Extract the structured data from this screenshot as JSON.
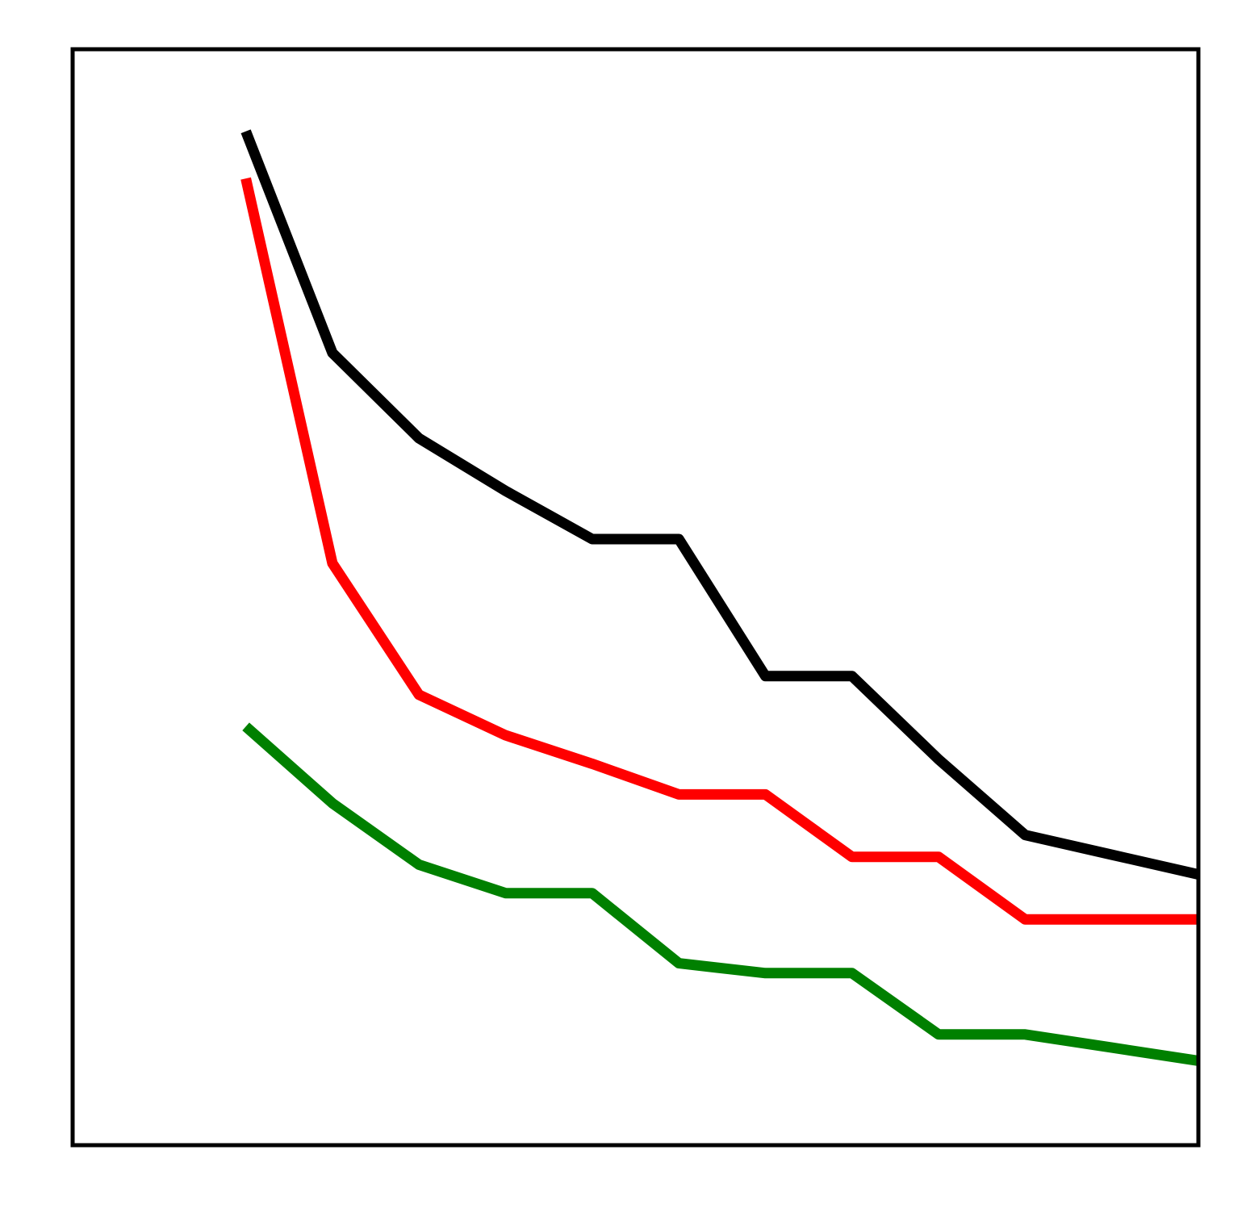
{
  "chart_data": {
    "type": "line",
    "title": "",
    "xlabel": "",
    "ylabel": "",
    "x": [
      1,
      2,
      3,
      4,
      5,
      6,
      7,
      8,
      9,
      10,
      11,
      12
    ],
    "xlim": [
      -1,
      12
    ],
    "ylim": [
      0,
      1
    ],
    "grid": false,
    "legend": "none",
    "series": [
      {
        "color": "#000000",
        "values": [
          0.925,
          0.723,
          0.645,
          0.597,
          0.553,
          0.553,
          0.428,
          0.428,
          0.352,
          0.283,
          0.265,
          null
        ]
      },
      {
        "color": "#ff0000",
        "values": [
          0.882,
          0.531,
          0.411,
          0.374,
          0.348,
          0.32,
          0.32,
          0.263,
          0.263,
          0.206,
          0.206,
          null
        ]
      },
      {
        "color": "#008000",
        "values": [
          0.382,
          0.312,
          0.256,
          0.23,
          0.23,
          0.166,
          0.157,
          0.157,
          0.101,
          0.101,
          0.089,
          null
        ]
      }
    ]
  }
}
